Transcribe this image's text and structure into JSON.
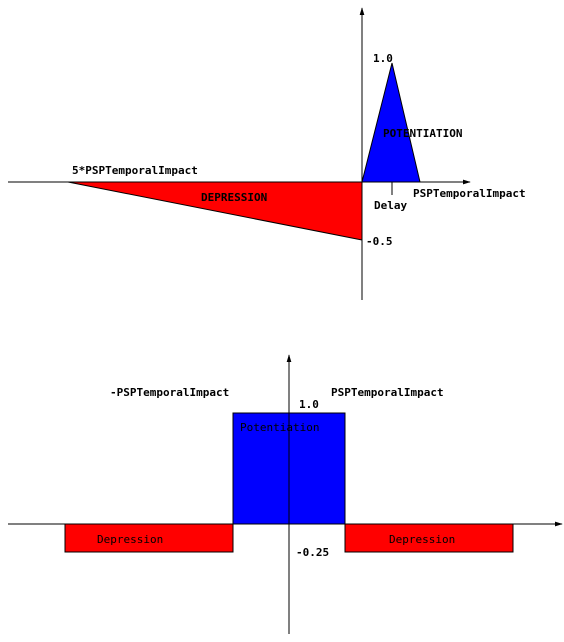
{
  "top_diagram": {
    "labels": {
      "peak": "1.0",
      "potentiation": "POTENTIATION",
      "left_extent": "5*PSPTemporalImpact",
      "depression": "DEPRESSION",
      "right_extent": "PSPTemporalImpact",
      "delay": "Delay",
      "trough": "-0.5"
    },
    "colors": {
      "potentiation": "#0000ff",
      "depression": "#ff0000"
    }
  },
  "bottom_diagram": {
    "labels": {
      "left_extent": "-PSPTemporalImpact",
      "right_extent": "PSPTemporalImpact",
      "peak": "1.0",
      "potentiation": "Potentiation",
      "depression_left": "Depression",
      "depression_right": "Depression",
      "trough": "-0.25"
    },
    "colors": {
      "potentiation": "#0000ff",
      "depression": "#ff0000"
    }
  }
}
